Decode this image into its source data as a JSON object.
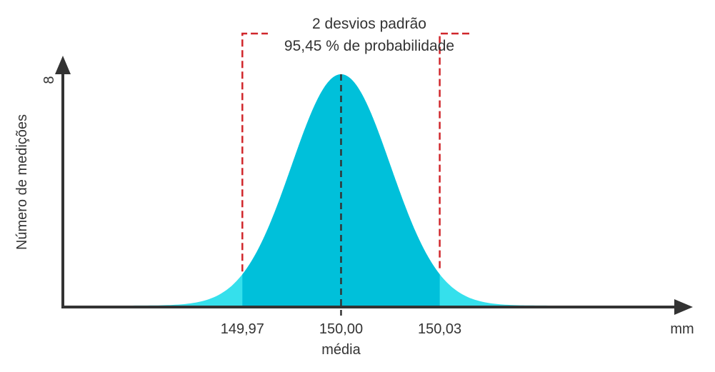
{
  "chart_data": {
    "type": "area",
    "title": "",
    "xlabel": "mm",
    "ylabel": "Número de medições",
    "y_top_tick": "8",
    "x_range": [
      149.915,
      150.1
    ],
    "mean": 150.0,
    "std_dev": 0.015,
    "x_ticks": [
      {
        "value": 149.97,
        "label": "149,97"
      },
      {
        "value": 150.0,
        "label": "150,00"
      },
      {
        "value": 150.03,
        "label": "150,03"
      }
    ],
    "mean_label": "média",
    "interval": {
      "from": 149.97,
      "to": 150.03
    },
    "annotation": {
      "line1": "2 desvios padrão",
      "line2": "95,45 % de probabilidade"
    },
    "colors": {
      "curve_fill": "#35E0EC",
      "interval_fill": "#00C0DA",
      "bracket": "#D0262B",
      "axis": "#333333",
      "mean_line": "#333333"
    },
    "grid": false
  }
}
